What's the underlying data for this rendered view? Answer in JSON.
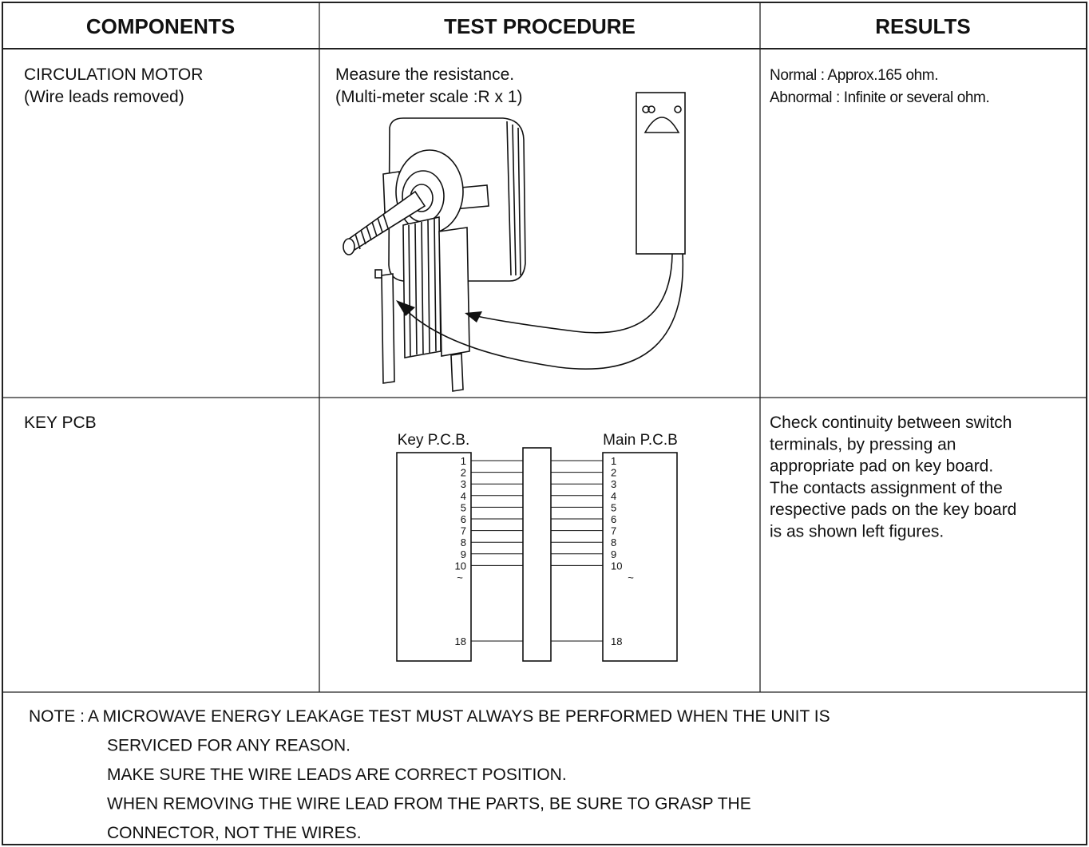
{
  "table": {
    "headers": [
      "COMPONENTS",
      "TEST PROCEDURE",
      "RESULTS"
    ],
    "rows": [
      {
        "component": [
          "CIRCULATION MOTOR",
          "(Wire leads removed)"
        ],
        "procedure": [
          "Measure the resistance.",
          "(Multi-meter scale :R x 1)"
        ],
        "results": [
          "Normal : Approx.165 ohm.",
          "Abnormal : Infinite or several ohm."
        ]
      },
      {
        "component": [
          "KEY PCB"
        ],
        "diagram": {
          "left_label": "Key P.C.B.",
          "right_label": "Main P.C.B",
          "pins": [
            "1",
            "2",
            "3",
            "4",
            "5",
            "6",
            "7",
            "8",
            "9",
            "10",
            "18"
          ],
          "separator": "~"
        },
        "results": [
          "Check continuity between switch",
          "terminals, by pressing an",
          "appropriate pad on key board.",
          "The contacts assignment of the",
          "respective pads on the key board",
          "is as shown left figures."
        ]
      }
    ],
    "note": {
      "label": "NOTE :",
      "lines": [
        "A MICROWAVE ENERGY LEAKAGE TEST MUST ALWAYS BE PERFORMED WHEN THE UNIT IS",
        "SERVICED FOR ANY REASON.",
        "MAKE SURE THE WIRE LEADS ARE CORRECT POSITION.",
        "WHEN REMOVING THE WIRE LEAD FROM THE PARTS, BE SURE TO GRASP THE",
        "CONNECTOR, NOT THE WIRES."
      ]
    }
  }
}
